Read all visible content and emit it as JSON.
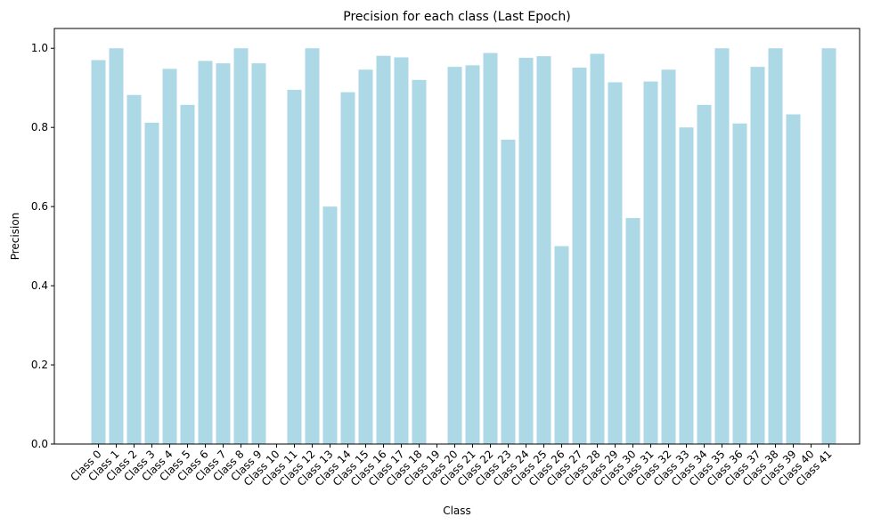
{
  "chart_data": {
    "type": "bar",
    "title": "Precision for each class (Last Epoch)",
    "xlabel": "Class",
    "ylabel": "Precision",
    "ylim": [
      0,
      1.05
    ],
    "yticks": [
      "0.0",
      "0.2",
      "0.4",
      "0.6",
      "0.8",
      "1.0"
    ],
    "ytick_values": [
      0.0,
      0.2,
      0.4,
      0.6,
      0.8,
      1.0
    ],
    "grid": false,
    "bar_color": "#add8e6",
    "categories": [
      "Class 0",
      "Class 1",
      "Class 2",
      "Class 3",
      "Class 4",
      "Class 5",
      "Class 6",
      "Class 7",
      "Class 8",
      "Class 9",
      "Class 10",
      "Class 11",
      "Class 12",
      "Class 13",
      "Class 14",
      "Class 15",
      "Class 16",
      "Class 17",
      "Class 18",
      "Class 19",
      "Class 20",
      "Class 21",
      "Class 22",
      "Class 23",
      "Class 24",
      "Class 25",
      "Class 26",
      "Class 27",
      "Class 28",
      "Class 29",
      "Class 30",
      "Class 31",
      "Class 32",
      "Class 33",
      "Class 34",
      "Class 35",
      "Class 36",
      "Class 37",
      "Class 38",
      "Class 39",
      "Class 40",
      "Class 41"
    ],
    "values": [
      0.97,
      1.0,
      0.882,
      0.812,
      0.948,
      0.857,
      0.968,
      0.962,
      1.0,
      0.962,
      0.0,
      0.895,
      1.0,
      0.6,
      0.889,
      0.946,
      0.981,
      0.977,
      0.92,
      0.0,
      0.953,
      0.957,
      0.988,
      0.769,
      0.976,
      0.98,
      0.5,
      0.951,
      0.986,
      0.914,
      0.571,
      0.916,
      0.946,
      0.8,
      0.857,
      1.0,
      0.81,
      0.953,
      1.0,
      0.833,
      0.0,
      1.0
    ]
  }
}
